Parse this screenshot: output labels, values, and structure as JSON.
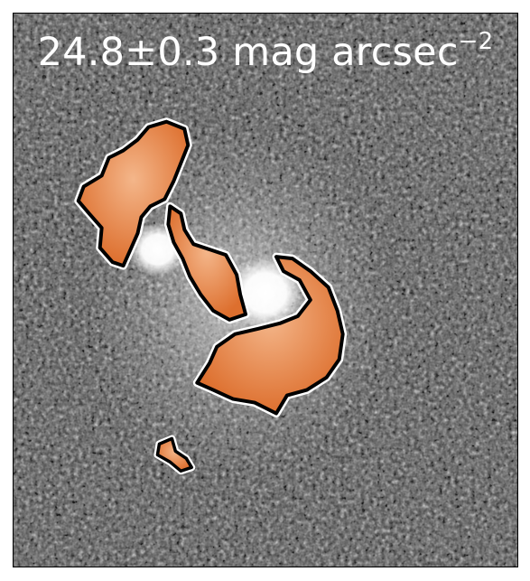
{
  "image": {
    "annotation": {
      "value": "24.8±0.3",
      "unit_base": "mag arcsec",
      "unit_exponent": "−2"
    },
    "colors": {
      "background_noise": "#4a4a4a",
      "feature_fill": "#e07a3c",
      "feature_highlight": "#f4b68a",
      "feature_outline": "#000000",
      "contour_halo": "#ffffff",
      "galaxy_core": "#ffffff"
    }
  }
}
